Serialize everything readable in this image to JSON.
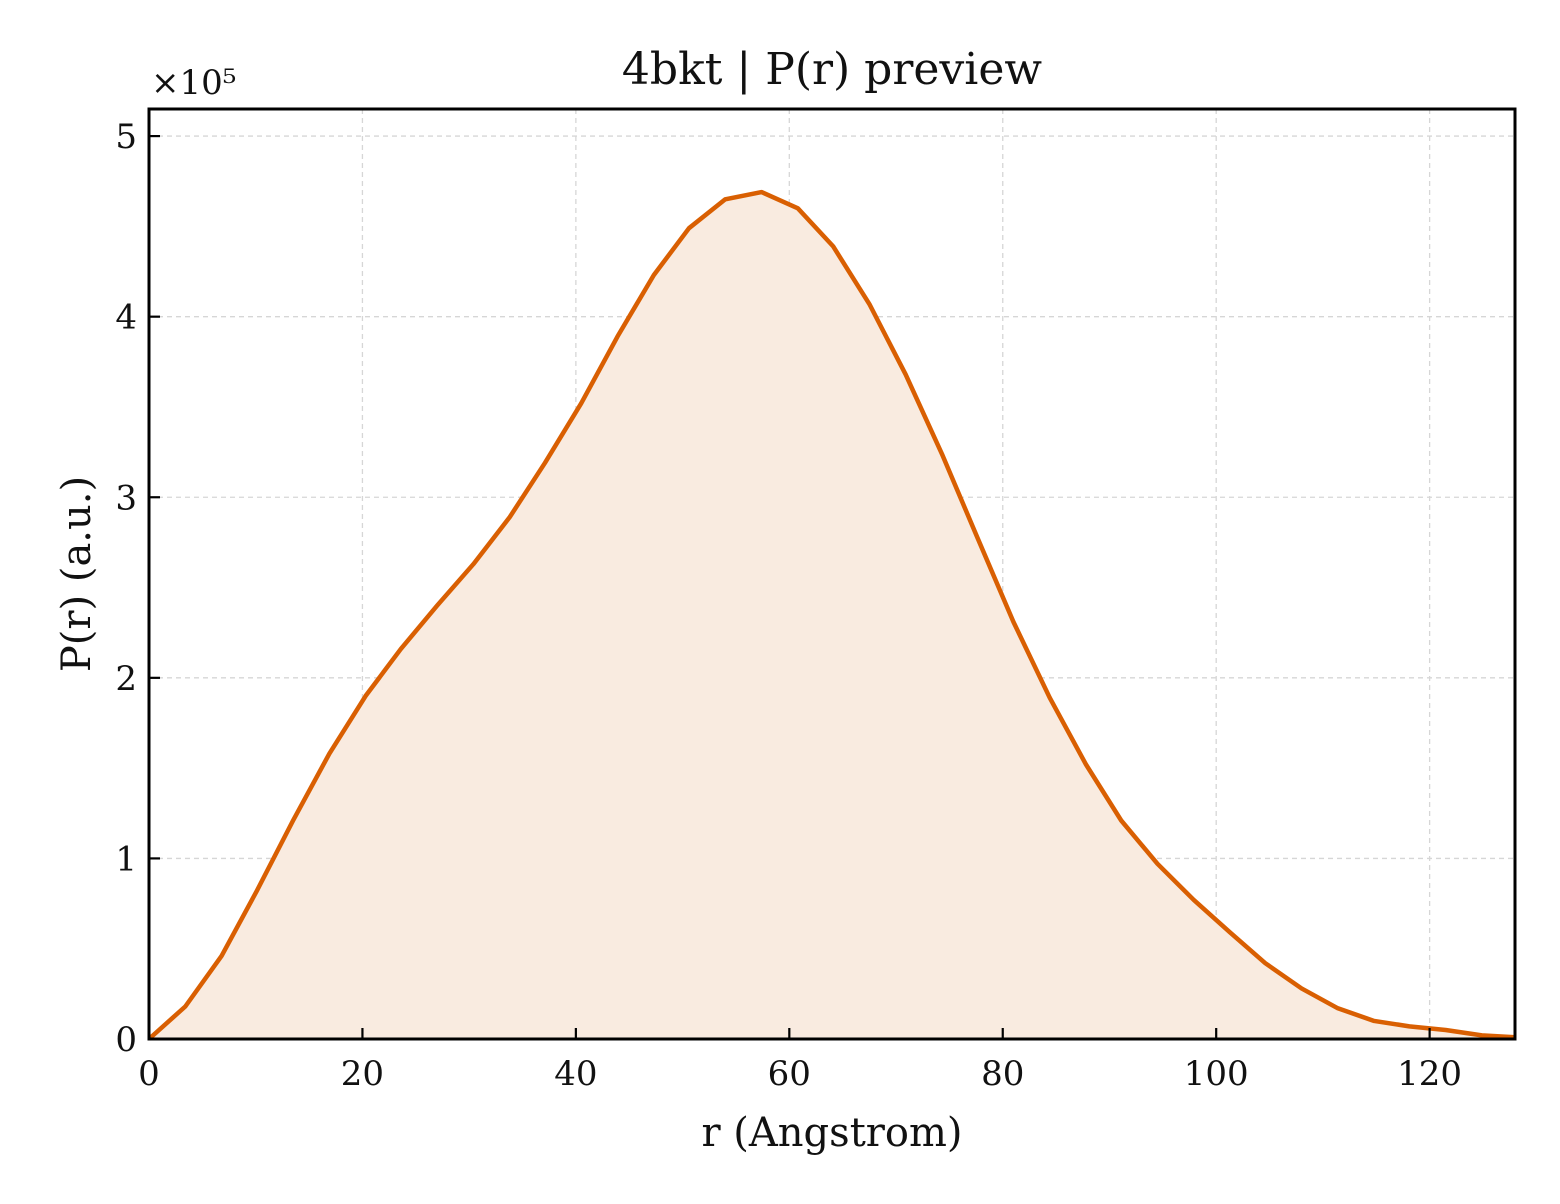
{
  "chart_data": {
    "type": "area",
    "title": "4bkt | P(r) preview",
    "xlabel": "r (Angstrom)",
    "ylabel": "P(r) (a.u.)",
    "y_multiplier_label": "×10⁵",
    "y_scale": 100000,
    "xlim": [
      0,
      128
    ],
    "ylim": [
      0,
      5.15
    ],
    "xticks": [
      0,
      20,
      40,
      60,
      80,
      100,
      120
    ],
    "yticks": [
      0,
      1,
      2,
      3,
      4,
      5
    ],
    "grid": true,
    "colors": {
      "line": "#d95f02",
      "fill": "#f9ebe0",
      "grid": "#d6d6d6",
      "axis": "#000000"
    },
    "series": [
      {
        "x": [
          0,
          3.4,
          6.8,
          10.1,
          13.5,
          16.9,
          20.3,
          23.6,
          27.0,
          30.4,
          33.8,
          37.1,
          40.5,
          43.9,
          47.3,
          50.6,
          54.0,
          57.4,
          60.8,
          64.1,
          67.5,
          70.9,
          74.3,
          77.6,
          81.0,
          84.4,
          87.8,
          91.1,
          94.5,
          97.9,
          101.3,
          104.6,
          108.0,
          111.4,
          114.8,
          118.1,
          121.5,
          124.9,
          128.0
        ],
        "y": [
          0.0,
          0.18,
          0.46,
          0.82,
          1.21,
          1.58,
          1.9,
          2.16,
          2.4,
          2.63,
          2.89,
          3.19,
          3.52,
          3.89,
          4.23,
          4.49,
          4.65,
          4.69,
          4.6,
          4.39,
          4.07,
          3.68,
          3.24,
          2.78,
          2.31,
          1.89,
          1.52,
          1.21,
          0.97,
          0.77,
          0.59,
          0.42,
          0.28,
          0.17,
          0.1,
          0.07,
          0.05,
          0.02,
          0.01
        ]
      }
    ]
  }
}
